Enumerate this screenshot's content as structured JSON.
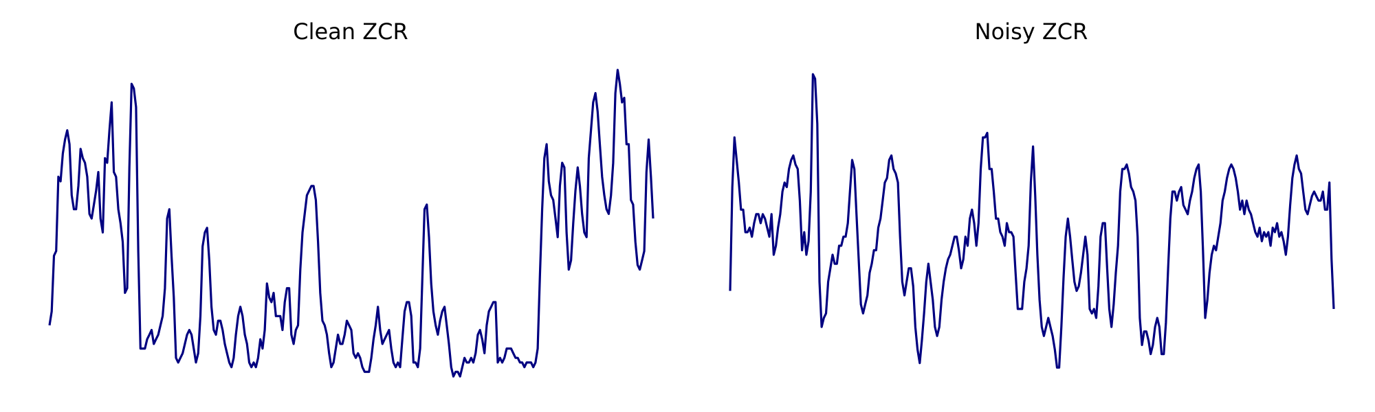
{
  "colors": {
    "line": "#000080",
    "background": "#ffffff"
  },
  "chart_data": [
    {
      "type": "line",
      "title": "Clean ZCR",
      "xlabel": "",
      "ylabel": "",
      "axes": "off",
      "grid": false,
      "legend": "none",
      "ylim": [
        0.0,
        1.0
      ],
      "series": [
        {
          "values": [
            0.1,
            0.13,
            0.25,
            0.26,
            0.42,
            0.41,
            0.47,
            0.5,
            0.52,
            0.49,
            0.38,
            0.35,
            0.35,
            0.4,
            0.48,
            0.46,
            0.45,
            0.42,
            0.34,
            0.33,
            0.36,
            0.39,
            0.43,
            0.33,
            0.3,
            0.46,
            0.45,
            0.52,
            0.58,
            0.43,
            0.42,
            0.35,
            0.32,
            0.28,
            0.17,
            0.18,
            0.44,
            0.62,
            0.61,
            0.57,
            0.26,
            0.05,
            0.05,
            0.05,
            0.07,
            0.08,
            0.09,
            0.06,
            0.07,
            0.08,
            0.1,
            0.12,
            0.18,
            0.33,
            0.35,
            0.25,
            0.16,
            0.03,
            0.02,
            0.03,
            0.04,
            0.06,
            0.08,
            0.09,
            0.08,
            0.05,
            0.02,
            0.04,
            0.12,
            0.27,
            0.3,
            0.31,
            0.24,
            0.14,
            0.09,
            0.08,
            0.11,
            0.11,
            0.09,
            0.06,
            0.04,
            0.02,
            0.01,
            0.03,
            0.08,
            0.12,
            0.14,
            0.12,
            0.08,
            0.06,
            0.02,
            0.01,
            0.02,
            0.01,
            0.03,
            0.07,
            0.05,
            0.09,
            0.19,
            0.16,
            0.15,
            0.17,
            0.12,
            0.12,
            0.12,
            0.09,
            0.15,
            0.18,
            0.18,
            0.08,
            0.06,
            0.09,
            0.1,
            0.22,
            0.3,
            0.34,
            0.38,
            0.39,
            0.4,
            0.4,
            0.37,
            0.28,
            0.17,
            0.11,
            0.1,
            0.08,
            0.04,
            0.01,
            0.02,
            0.05,
            0.08,
            0.06,
            0.06,
            0.08,
            0.11,
            0.1,
            0.09,
            0.04,
            0.03,
            0.04,
            0.03,
            0.01,
            0.0,
            0.0,
            0.0,
            0.03,
            0.07,
            0.1,
            0.14,
            0.09,
            0.06,
            0.07,
            0.08,
            0.09,
            0.05,
            0.02,
            0.01,
            0.02,
            0.01,
            0.07,
            0.13,
            0.15,
            0.15,
            0.12,
            0.02,
            0.02,
            0.01,
            0.05,
            0.2,
            0.35,
            0.36,
            0.29,
            0.19,
            0.13,
            0.1,
            0.08,
            0.11,
            0.13,
            0.14,
            0.1,
            0.06,
            0.01,
            -0.01,
            0.0,
            0.0,
            -0.01,
            0.01,
            0.03,
            0.02,
            0.02,
            0.03,
            0.02,
            0.04,
            0.08,
            0.09,
            0.07,
            0.04,
            0.1,
            0.13,
            0.14,
            0.15,
            0.15,
            0.02,
            0.03,
            0.02,
            0.03,
            0.05,
            0.05,
            0.05,
            0.04,
            0.03,
            0.03,
            0.02,
            0.02,
            0.01,
            0.02,
            0.02,
            0.02,
            0.01,
            0.02,
            0.05,
            0.21,
            0.35,
            0.46,
            0.49,
            0.41,
            0.38,
            0.37,
            0.33,
            0.29,
            0.4,
            0.45,
            0.44,
            0.3,
            0.22,
            0.24,
            0.32,
            0.39,
            0.44,
            0.4,
            0.34,
            0.3,
            0.29,
            0.46,
            0.52,
            0.58,
            0.6,
            0.56,
            0.49,
            0.42,
            0.38,
            0.35,
            0.34,
            0.38,
            0.45,
            0.6,
            0.65,
            0.62,
            0.58,
            0.59,
            0.49,
            0.49,
            0.37,
            0.36,
            0.28,
            0.23,
            0.22,
            0.24,
            0.26,
            0.43,
            0.5,
            0.42,
            0.33
          ],
          "ylim_hint": [
            -0.02,
            0.66
          ]
        }
      ]
    },
    {
      "type": "line",
      "title": "Noisy ZCR",
      "xlabel": "",
      "ylabel": "",
      "axes": "off",
      "grid": false,
      "legend": "none",
      "ylim": [
        0.0,
        1.0
      ],
      "series": [
        {
          "values": [
            0.18,
            0.41,
            0.52,
            0.47,
            0.42,
            0.36,
            0.36,
            0.31,
            0.31,
            0.32,
            0.3,
            0.33,
            0.35,
            0.35,
            0.33,
            0.35,
            0.34,
            0.32,
            0.3,
            0.35,
            0.26,
            0.28,
            0.32,
            0.35,
            0.4,
            0.42,
            0.41,
            0.45,
            0.47,
            0.48,
            0.46,
            0.45,
            0.38,
            0.27,
            0.31,
            0.26,
            0.29,
            0.4,
            0.66,
            0.65,
            0.55,
            0.2,
            0.1,
            0.12,
            0.13,
            0.2,
            0.23,
            0.26,
            0.24,
            0.24,
            0.28,
            0.28,
            0.3,
            0.3,
            0.33,
            0.4,
            0.47,
            0.45,
            0.35,
            0.25,
            0.15,
            0.13,
            0.15,
            0.17,
            0.22,
            0.24,
            0.27,
            0.27,
            0.32,
            0.34,
            0.38,
            0.42,
            0.43,
            0.47,
            0.48,
            0.45,
            0.44,
            0.42,
            0.3,
            0.2,
            0.17,
            0.2,
            0.23,
            0.23,
            0.19,
            0.1,
            0.05,
            0.02,
            0.07,
            0.13,
            0.2,
            0.24,
            0.2,
            0.16,
            0.1,
            0.08,
            0.1,
            0.16,
            0.2,
            0.23,
            0.25,
            0.26,
            0.28,
            0.3,
            0.3,
            0.27,
            0.23,
            0.25,
            0.3,
            0.28,
            0.34,
            0.36,
            0.33,
            0.28,
            0.33,
            0.45,
            0.52,
            0.52,
            0.53,
            0.45,
            0.45,
            0.4,
            0.34,
            0.34,
            0.31,
            0.3,
            0.28,
            0.33,
            0.31,
            0.31,
            0.3,
            0.22,
            0.14,
            0.14,
            0.14,
            0.2,
            0.23,
            0.28,
            0.42,
            0.5,
            0.39,
            0.26,
            0.16,
            0.1,
            0.08,
            0.1,
            0.12,
            0.1,
            0.08,
            0.05,
            0.01,
            0.01,
            0.1,
            0.21,
            0.3,
            0.34,
            0.3,
            0.25,
            0.2,
            0.18,
            0.19,
            0.22,
            0.26,
            0.3,
            0.26,
            0.14,
            0.13,
            0.14,
            0.12,
            0.19,
            0.3,
            0.33,
            0.33,
            0.23,
            0.14,
            0.1,
            0.15,
            0.22,
            0.28,
            0.4,
            0.45,
            0.45,
            0.46,
            0.44,
            0.41,
            0.4,
            0.38,
            0.3,
            0.12,
            0.06,
            0.09,
            0.09,
            0.07,
            0.04,
            0.06,
            0.1,
            0.12,
            0.1,
            0.04,
            0.04,
            0.11,
            0.23,
            0.34,
            0.4,
            0.4,
            0.38,
            0.4,
            0.41,
            0.37,
            0.36,
            0.35,
            0.38,
            0.4,
            0.43,
            0.45,
            0.46,
            0.4,
            0.27,
            0.12,
            0.16,
            0.22,
            0.26,
            0.28,
            0.27,
            0.3,
            0.33,
            0.38,
            0.4,
            0.43,
            0.45,
            0.46,
            0.45,
            0.43,
            0.4,
            0.36,
            0.38,
            0.35,
            0.38,
            0.36,
            0.35,
            0.33,
            0.31,
            0.3,
            0.32,
            0.29,
            0.31,
            0.3,
            0.31,
            0.28,
            0.32,
            0.31,
            0.33,
            0.3,
            0.31,
            0.29,
            0.26,
            0.3,
            0.37,
            0.43,
            0.46,
            0.48,
            0.45,
            0.44,
            0.4,
            0.36,
            0.35,
            0.37,
            0.39,
            0.4,
            0.39,
            0.38,
            0.38,
            0.4,
            0.36,
            0.36,
            0.42,
            0.25,
            0.14
          ],
          "ylim_hint": [
            -0.02,
            0.68
          ]
        }
      ]
    }
  ]
}
